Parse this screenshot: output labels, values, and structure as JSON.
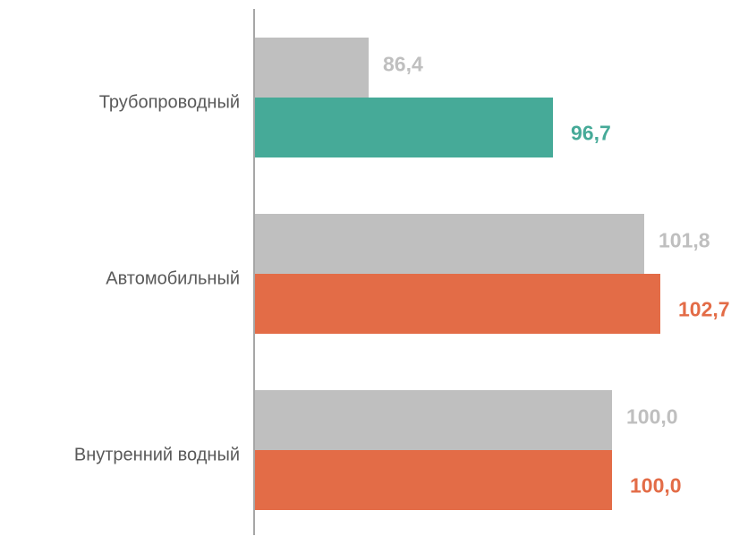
{
  "chart_data": {
    "type": "hbar",
    "categories": [
      "Трубопроводный",
      "Автомобильный",
      "Внутренний водный"
    ],
    "series": [
      {
        "color": "#bfbfbf",
        "values": [
          86.4,
          101.8,
          100.0
        ],
        "value_labels": [
          "86,4",
          "101,8",
          "100,0"
        ]
      },
      {
        "colors": [
          "#46aa98",
          "#e36c47",
          "#e36c47"
        ],
        "values": [
          96.7,
          102.7,
          100.0
        ],
        "value_labels": [
          "96,7",
          "102,7",
          "100,0"
        ]
      }
    ],
    "xlim": [
      80,
      107
    ]
  }
}
